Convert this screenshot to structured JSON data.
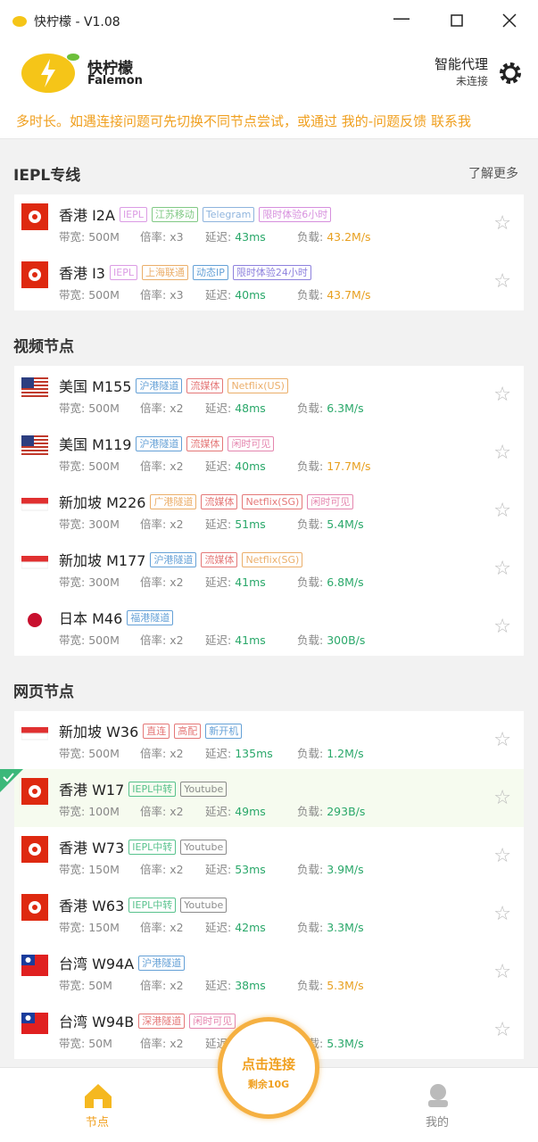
{
  "window": {
    "title": "快柠檬 - V1.08"
  },
  "header": {
    "brand_cn": "快柠檬",
    "brand_en": "Falemon",
    "mode": "智能代理",
    "status": "未连接"
  },
  "notice": "多时长。如遇连接问题可先切换不同节点尝试，或通过 我的-问题反馈 联系我",
  "labels": {
    "bandwidth": "带宽:",
    "rate": "倍率:",
    "latency": "延迟:",
    "load": "负载:"
  },
  "sections": [
    {
      "title": "IEPL专线",
      "more": "了解更多",
      "nodes": [
        {
          "flag": "hk",
          "name": "香港 I2A",
          "tags": [
            {
              "text": "IEPL",
              "color": "#d58ae0"
            },
            {
              "text": "江苏移动",
              "color": "#6cc070"
            },
            {
              "text": "Telegram",
              "color": "#7ba7d8"
            },
            {
              "text": "限时体验6小时",
              "color": "#d07cd8"
            }
          ],
          "bandwidth": "500M",
          "rate": "x3",
          "latency": "43ms",
          "load": "43.2M/s",
          "load_color": "#e8a020"
        },
        {
          "flag": "hk",
          "name": "香港 I3",
          "tags": [
            {
              "text": "IEPL",
              "color": "#d58ae0"
            },
            {
              "text": "上海联通",
              "color": "#e8a050"
            },
            {
              "text": "动态IP",
              "color": "#4a90d0"
            },
            {
              "text": "限时体验24小时",
              "color": "#7a6cd8"
            }
          ],
          "bandwidth": "500M",
          "rate": "x3",
          "latency": "40ms",
          "load": "43.7M/s",
          "load_color": "#e8a020"
        }
      ]
    },
    {
      "title": "视频节点",
      "nodes": [
        {
          "flag": "us",
          "name": "美国 M155",
          "tags": [
            {
              "text": "沪港隧道",
              "color": "#4a90d0"
            },
            {
              "text": "流媒体",
              "color": "#e06060"
            },
            {
              "text": "Netflix(US)",
              "color": "#e8a050"
            }
          ],
          "bandwidth": "500M",
          "rate": "x2",
          "latency": "48ms",
          "load": "6.3M/s",
          "load_color": "#2aa86a"
        },
        {
          "flag": "us",
          "name": "美国 M119",
          "tags": [
            {
              "text": "沪港隧道",
              "color": "#4a90d0"
            },
            {
              "text": "流媒体",
              "color": "#e06060"
            },
            {
              "text": "闲时可见",
              "color": "#e070a0"
            }
          ],
          "bandwidth": "500M",
          "rate": "x2",
          "latency": "40ms",
          "load": "17.7M/s",
          "load_color": "#e8a020"
        },
        {
          "flag": "sg",
          "name": "新加坡 M226",
          "tags": [
            {
              "text": "广港隧道",
              "color": "#e8a050"
            },
            {
              "text": "流媒体",
              "color": "#e06060"
            },
            {
              "text": "Netflix(SG)",
              "color": "#e06060"
            },
            {
              "text": "闲时可见",
              "color": "#e070a0"
            }
          ],
          "bandwidth": "300M",
          "rate": "x2",
          "latency": "51ms",
          "load": "5.4M/s",
          "load_color": "#2aa86a"
        },
        {
          "flag": "sg",
          "name": "新加坡 M177",
          "tags": [
            {
              "text": "沪港隧道",
              "color": "#4a90d0"
            },
            {
              "text": "流媒体",
              "color": "#e06060"
            },
            {
              "text": "Netflix(SG)",
              "color": "#e8a050"
            }
          ],
          "bandwidth": "300M",
          "rate": "x2",
          "latency": "41ms",
          "load": "6.8M/s",
          "load_color": "#2aa86a"
        },
        {
          "flag": "jp",
          "name": "日本 M46",
          "tags": [
            {
              "text": "福港隧道",
              "color": "#4a90d0"
            }
          ],
          "bandwidth": "500M",
          "rate": "x2",
          "latency": "41ms",
          "load": "300B/s",
          "load_color": "#2aa86a"
        }
      ]
    },
    {
      "title": "网页节点",
      "nodes": [
        {
          "flag": "sg",
          "name": "新加坡 W36",
          "tags": [
            {
              "text": "直连",
              "color": "#e06060"
            },
            {
              "text": "高配",
              "color": "#e06060"
            },
            {
              "text": "新开机",
              "color": "#4a90d0"
            }
          ],
          "bandwidth": "500M",
          "rate": "x2",
          "latency": "135ms",
          "load": "1.2M/s",
          "load_color": "#2aa86a"
        },
        {
          "flag": "hk",
          "name": "香港 W17",
          "selected": true,
          "tags": [
            {
              "text": "IEPL中转",
              "color": "#3cb87a"
            },
            {
              "text": "Youtube",
              "color": "#777777"
            }
          ],
          "bandwidth": "100M",
          "rate": "x2",
          "latency": "49ms",
          "load": "293B/s",
          "load_color": "#2aa86a"
        },
        {
          "flag": "hk",
          "name": "香港 W73",
          "tags": [
            {
              "text": "IEPL中转",
              "color": "#3cb87a"
            },
            {
              "text": "Youtube",
              "color": "#777777"
            }
          ],
          "bandwidth": "150M",
          "rate": "x2",
          "latency": "53ms",
          "load": "3.9M/s",
          "load_color": "#2aa86a"
        },
        {
          "flag": "hk",
          "name": "香港 W63",
          "tags": [
            {
              "text": "IEPL中转",
              "color": "#3cb87a"
            },
            {
              "text": "Youtube",
              "color": "#777777"
            }
          ],
          "bandwidth": "150M",
          "rate": "x2",
          "latency": "42ms",
          "load": "3.3M/s",
          "load_color": "#2aa86a"
        },
        {
          "flag": "tw",
          "name": "台湾 W94A",
          "tags": [
            {
              "text": "沪港隧道",
              "color": "#4a90d0"
            }
          ],
          "bandwidth": "50M",
          "rate": "x2",
          "latency": "38ms",
          "load": "5.3M/s",
          "load_color": "#e8a020"
        },
        {
          "flag": "tw",
          "name": "台湾 W94B",
          "tags": [
            {
              "text": "深港隧道",
              "color": "#e06060"
            },
            {
              "text": "闲时可见",
              "color": "#e070a0"
            }
          ],
          "bandwidth": "50M",
          "rate": "x2",
          "latency": "",
          "load": "5.3M/s",
          "load_color": "#2aa86a"
        }
      ]
    }
  ],
  "connect": {
    "button": "点击连接",
    "remaining": "剩余10G"
  },
  "tabs": [
    "节点",
    "我的"
  ]
}
